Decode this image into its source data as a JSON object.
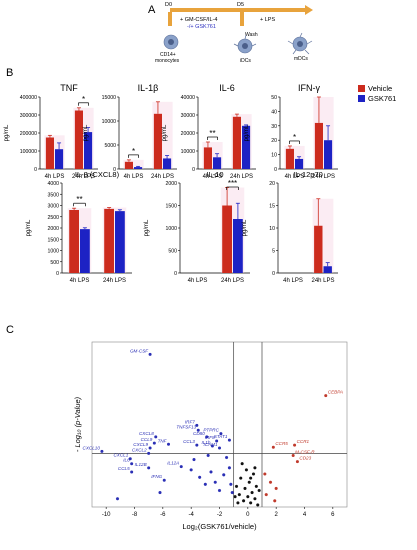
{
  "panels": {
    "a": "A",
    "b": "B",
    "c": "C"
  },
  "schematic": {
    "d0": "D0",
    "d5": "D5",
    "treatment": "+ GM-CSF/IL-4",
    "treatment2": "-/+ GSK761",
    "lps": "+ LPS",
    "wash": "Wash",
    "cell1": "CD14+",
    "cell1b": "monocytes",
    "cell2": "iDCs",
    "cell3": "mDCs",
    "colors": {
      "arrow": "#e8a33c",
      "gsk": "#2c2fbf"
    }
  },
  "legend": {
    "vehicle": "Vehicle",
    "gsk": "GSK761"
  },
  "colors": {
    "vehicle": "#cc2b1e",
    "gsk": "#1d22c4",
    "vehicle_bg": "#f3c9dc",
    "gsk_bg": "#c9c9ee",
    "volcano_sig_up": "#c0392b",
    "volcano_sig_down": "#2a2fb5",
    "volcano_ns": "#111111"
  },
  "chart_data": [
    {
      "type": "bar",
      "title": "TNF",
      "ylabel": "pg/mL",
      "categories": [
        "4h LPS",
        "24h LPS"
      ],
      "ylim": [
        0,
        400000
      ],
      "yticks": [
        0,
        100000,
        200000,
        300000,
        400000
      ],
      "series": [
        {
          "name": "Vehicle",
          "values": [
            175000,
            325000
          ],
          "errors": [
            12000,
            15000
          ]
        },
        {
          "name": "GSK761",
          "values": [
            110000,
            205000
          ],
          "errors": [
            35000,
            25000
          ]
        }
      ],
      "annotations": [
        {
          "group": "24h LPS",
          "text": "*"
        }
      ]
    },
    {
      "type": "bar",
      "title": "IL-1β",
      "ylabel": "pg/mL",
      "categories": [
        "4h LPS",
        "24h LPS"
      ],
      "ylim": [
        0,
        15000
      ],
      "yticks": [
        0,
        5000,
        10000,
        15000
      ],
      "series": [
        {
          "name": "Vehicle",
          "values": [
            1500,
            11500
          ],
          "errors": [
            400,
            2500
          ]
        },
        {
          "name": "GSK761",
          "values": [
            400,
            2200
          ],
          "errors": [
            150,
            600
          ]
        }
      ],
      "annotations": [
        {
          "group": "4h LPS",
          "text": "*"
        }
      ]
    },
    {
      "type": "bar",
      "title": "IL-6",
      "ylabel": "pg/mL",
      "categories": [
        "4h LPS",
        "24h LPS"
      ],
      "ylim": [
        0,
        40000
      ],
      "yticks": [
        0,
        10000,
        20000,
        30000,
        40000
      ],
      "series": [
        {
          "name": "Vehicle",
          "values": [
            12000,
            29000
          ],
          "errors": [
            3000,
            1500
          ]
        },
        {
          "name": "GSK761",
          "values": [
            6500,
            24000
          ],
          "errors": [
            2000,
            500
          ]
        }
      ],
      "annotations": [
        {
          "group": "4h LPS",
          "text": "**"
        }
      ]
    },
    {
      "type": "bar",
      "title": "IFN-γ",
      "ylabel": "pg/mL",
      "categories": [
        "4h LPS",
        "24h LPS"
      ],
      "ylim": [
        0,
        50
      ],
      "yticks": [
        0,
        10,
        20,
        30,
        40,
        50
      ],
      "series": [
        {
          "name": "Vehicle",
          "values": [
            14,
            32
          ],
          "errors": [
            2,
            18
          ]
        },
        {
          "name": "GSK761",
          "values": [
            7,
            20
          ],
          "errors": [
            1.5,
            10
          ]
        }
      ],
      "annotations": [
        {
          "group": "4h LPS",
          "text": "*"
        }
      ]
    },
    {
      "type": "bar",
      "title": "IL-8 (CXCL8)",
      "ylabel": "pg/mL",
      "categories": [
        "4h LPS",
        "24h LPS"
      ],
      "ylim": [
        0,
        4000
      ],
      "yticks": [
        0,
        500,
        1000,
        1500,
        2000,
        2500,
        3000,
        3500,
        4000
      ],
      "series": [
        {
          "name": "Vehicle",
          "values": [
            2800,
            2850
          ],
          "errors": [
            80,
            60
          ]
        },
        {
          "name": "GSK761",
          "values": [
            1950,
            2750
          ],
          "errors": [
            60,
            60
          ]
        }
      ],
      "annotations": [
        {
          "group": "4h LPS",
          "text": "**"
        }
      ]
    },
    {
      "type": "bar",
      "title": "IL-10",
      "ylabel": "pg/mL",
      "categories": [
        "4h LPS",
        "24h LPS"
      ],
      "ylim": [
        0,
        2000
      ],
      "yticks": [
        0,
        500,
        1000,
        1500,
        2000
      ],
      "series": [
        {
          "name": "Vehicle",
          "values": [
            0,
            1500
          ],
          "errors": [
            0,
            400
          ]
        },
        {
          "name": "GSK761",
          "values": [
            0,
            1200
          ],
          "errors": [
            0,
            350
          ]
        }
      ],
      "annotations": [
        {
          "group": "24h LPS",
          "text": "***"
        }
      ]
    },
    {
      "type": "bar",
      "title": "IL-12p70",
      "ylabel": "pg/mL",
      "categories": [
        "4h LPS",
        "24h LPS"
      ],
      "ylim": [
        0,
        20
      ],
      "yticks": [
        0,
        5,
        10,
        15,
        20
      ],
      "series": [
        {
          "name": "Vehicle",
          "values": [
            0,
            10.5
          ],
          "errors": [
            0,
            6
          ]
        },
        {
          "name": "GSK761",
          "values": [
            0,
            1.5
          ],
          "errors": [
            0,
            0.8
          ]
        }
      ],
      "annotations": []
    },
    {
      "type": "scatter",
      "title": "",
      "xlabel": "Log₂(GSK761/vehicle)",
      "ylabel": "- Log₁₀ (p-Value)",
      "xlim": [
        -11,
        7
      ],
      "ylim": [
        0,
        4
      ],
      "xticks": [
        -10,
        -8,
        -6,
        -4,
        -2,
        0,
        2,
        4,
        6
      ],
      "vlines": [
        -1,
        1
      ],
      "hline": 1.3,
      "labeled": [
        {
          "label": "GM-CSF",
          "x": -6.9,
          "y": 3.7,
          "group": "down"
        },
        {
          "label": "CXCL10",
          "x": -10.3,
          "y": 1.35,
          "group": "down"
        },
        {
          "label": "CXCL8",
          "x": -6.5,
          "y": 1.7,
          "group": "down"
        },
        {
          "label": "CCL9",
          "x": -6.6,
          "y": 1.55,
          "group": "down"
        },
        {
          "label": "CXCL9",
          "x": -6.9,
          "y": 1.43,
          "group": "down"
        },
        {
          "label": "CXCL2",
          "x": -7.0,
          "y": 1.3,
          "group": "down"
        },
        {
          "label": "CXCL1",
          "x": -8.3,
          "y": 1.17,
          "group": "down"
        },
        {
          "label": "IL6",
          "x": -8.2,
          "y": 1.05,
          "group": "down"
        },
        {
          "label": "IL12B",
          "x": -7.0,
          "y": 0.95,
          "group": "down"
        },
        {
          "label": "CCL5",
          "x": -8.2,
          "y": 0.85,
          "group": "down"
        },
        {
          "label": "TNF",
          "x": -5.6,
          "y": 1.52,
          "group": "down"
        },
        {
          "label": "IL12A",
          "x": -4.7,
          "y": 0.98,
          "group": "down"
        },
        {
          "label": "IFNG",
          "x": -5.9,
          "y": 0.65,
          "group": "down"
        },
        {
          "label": "IRF7",
          "x": -3.6,
          "y": 1.98,
          "group": "down"
        },
        {
          "label": "TNFSF13",
          "x": -3.5,
          "y": 1.86,
          "group": "down"
        },
        {
          "label": "CD80",
          "x": -2.9,
          "y": 1.7,
          "group": "down"
        },
        {
          "label": "IRF8",
          "x": -2.2,
          "y": 1.6,
          "group": "down"
        },
        {
          "label": "PTPRC",
          "x": -1.9,
          "y": 1.78,
          "group": "down"
        },
        {
          "label": "IL1b",
          "x": -2.5,
          "y": 1.48,
          "group": "down"
        },
        {
          "label": "CCL3",
          "x": -3.6,
          "y": 1.5,
          "group": "down"
        },
        {
          "label": "ICAM1",
          "x": -2.0,
          "y": 1.43,
          "group": "down"
        },
        {
          "label": "STAT1",
          "x": -1.3,
          "y": 1.62,
          "group": "down"
        },
        {
          "label": "CCR5",
          "x": 1.8,
          "y": 1.45,
          "group": "up"
        },
        {
          "label": "CCR1",
          "x": 3.3,
          "y": 1.5,
          "group": "up"
        },
        {
          "label": "CEBPA",
          "x": 5.5,
          "y": 2.7,
          "group": "up"
        },
        {
          "label": "M-CSF-R",
          "x": 3.2,
          "y": 1.25,
          "group": "up"
        },
        {
          "label": "CD23",
          "x": 3.5,
          "y": 1.1,
          "group": "up"
        }
      ],
      "unlabeled": [
        {
          "x": -9.2,
          "y": 0.2
        },
        {
          "x": -6.2,
          "y": 0.35
        },
        {
          "x": -4.0,
          "y": 0.9
        },
        {
          "x": -3.4,
          "y": 0.72
        },
        {
          "x": -3.0,
          "y": 0.55
        },
        {
          "x": -2.6,
          "y": 0.85
        },
        {
          "x": -2.3,
          "y": 0.6
        },
        {
          "x": -2.0,
          "y": 0.4
        },
        {
          "x": -1.7,
          "y": 0.78
        },
        {
          "x": -1.3,
          "y": 0.95
        },
        {
          "x": -1.2,
          "y": 0.55
        },
        {
          "x": -1.1,
          "y": 0.35
        },
        {
          "x": -3.8,
          "y": 1.15
        },
        {
          "x": -2.8,
          "y": 1.25
        },
        {
          "x": -1.5,
          "y": 1.2
        },
        {
          "x": -0.8,
          "y": 0.5
        },
        {
          "x": -0.6,
          "y": 0.3
        },
        {
          "x": -0.5,
          "y": 0.7
        },
        {
          "x": -0.3,
          "y": 0.15
        },
        {
          "x": -0.2,
          "y": 0.45
        },
        {
          "x": 0.0,
          "y": 0.25
        },
        {
          "x": 0.1,
          "y": 0.6
        },
        {
          "x": 0.2,
          "y": 0.1
        },
        {
          "x": 0.3,
          "y": 0.35
        },
        {
          "x": 0.4,
          "y": 0.8
        },
        {
          "x": 0.5,
          "y": 0.2
        },
        {
          "x": 0.6,
          "y": 0.5
        },
        {
          "x": -0.1,
          "y": 0.9
        },
        {
          "x": 0.7,
          "y": 0.05
        },
        {
          "x": -0.7,
          "y": 0.1
        },
        {
          "x": 0.8,
          "y": 0.4
        },
        {
          "x": -0.4,
          "y": 1.05
        },
        {
          "x": 0.2,
          "y": 0.7
        },
        {
          "x": -0.9,
          "y": 0.25
        },
        {
          "x": 0.5,
          "y": 0.95
        },
        {
          "x": 1.3,
          "y": 0.3
        },
        {
          "x": 1.6,
          "y": 0.6
        },
        {
          "x": 2.0,
          "y": 0.45
        },
        {
          "x": 1.9,
          "y": 0.15
        },
        {
          "x": 1.2,
          "y": 0.8
        }
      ]
    }
  ]
}
